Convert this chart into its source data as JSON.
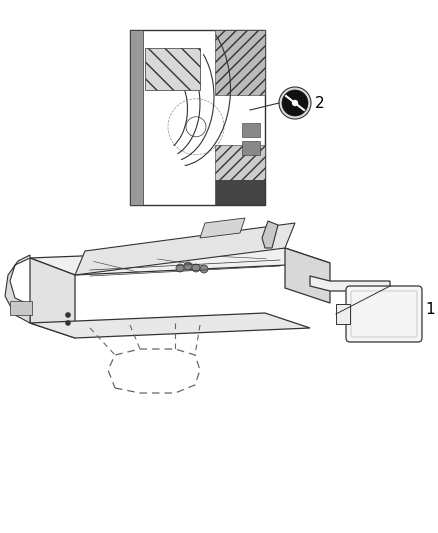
{
  "background_color": "#ffffff",
  "line_color": "#333333",
  "label_1": "1",
  "label_2": "2",
  "figure_width": 4.38,
  "figure_height": 5.33,
  "dpi": 100
}
